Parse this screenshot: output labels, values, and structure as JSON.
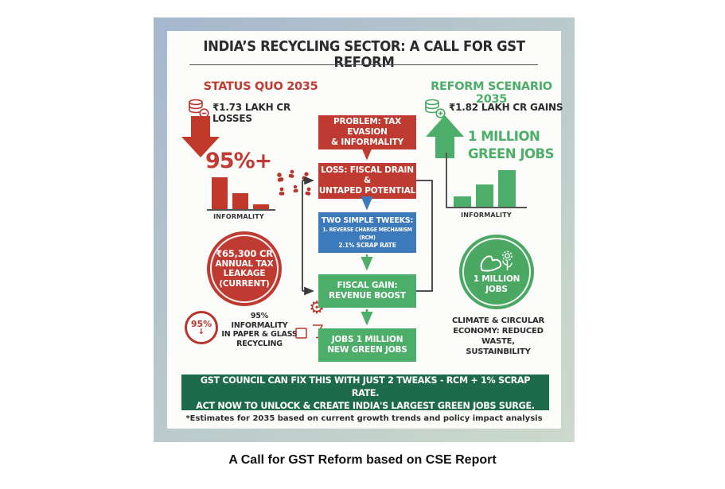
{
  "page": {
    "caption": "A Call for GST Reform based on CSE Report"
  },
  "infographic": {
    "title": "INDIA’S RECYCLING SECTOR: A CALL FOR GST REFORM",
    "status_quo": {
      "heading": "STATUS QUO 2035",
      "amount": "₹1.73 LAKH CR LOSSES",
      "informality_stat": "95%+",
      "chart_label": "INFORMALITY",
      "chart_bars_rel": [
        40,
        20,
        6
      ],
      "leakage_circle": {
        "line1": "₹65,300 CR",
        "line2": "ANNUAL TAX",
        "line3": "LEAKAGE",
        "line4": "(CURRENT)"
      },
      "badge_value": "95%",
      "badge_arrow": "↓",
      "badge_text": {
        "line1": "95% INFORMALITY",
        "line2": "IN PAPER & GLASS",
        "line3": "RECYCLING"
      }
    },
    "reform_scenario": {
      "heading": "REFORM SCENARIO 2035",
      "amount": "₹1.82 LAKH CR GAINS",
      "jobs_headline": {
        "line1": "1 MILLION",
        "line2": "GREEN JOBS"
      },
      "chart_label": "INFORMALITY",
      "chart_bars_rel": [
        13,
        28,
        46
      ],
      "jobs_circle": {
        "line1": "1 MILLION",
        "line2": "JOBS"
      },
      "climate_text": {
        "line1": "CLIMATE & CIRCULAR",
        "line2": "ECONOMY: REDUCED WASTE,",
        "line3": "SUSTAINBILITY"
      }
    },
    "flowchart": {
      "problem": {
        "line1": "PROBLEM: TAX EVASION",
        "line2": "& INFORMALITY"
      },
      "loss": {
        "line1": "LOSS: FISCAL DRAIN &",
        "line2": "UNTAPED POTENTIAL"
      },
      "tweaks": {
        "line1": "TWO SIMPLE TWEEKS:",
        "line2": "1. REVERSE CHARGE MECHANISM (RCM)",
        "line3": "2.1% SCRAP RATE"
      },
      "gain": {
        "line1": "FISCAL GAIN:",
        "line2": "REVENUE BOOST"
      },
      "jobs": {
        "line1": "JOBS 1 MILLION",
        "line2": "NEW GREEN JOBS"
      }
    },
    "banner": {
      "line1": "GST COUNCIL CAN FIX THIS WITH JUST 2 TWEAKS - RCM + 1% SCRAP RATE.",
      "line2": "ACT NOW TO UNLOCK & CREATE INDIA'S LARGEST GREEN JOBS SURGE."
    },
    "footnote": "*Estimates for 2035 based on current growth trends and policy impact analysis"
  },
  "icons": {
    "gear_glyph": "⚙",
    "coins_minus": "coins-stack-with-minus",
    "coins_plus": "coins-stack-with-plus",
    "down_arrow": "big-red-down-arrow",
    "up_arrow": "big-green-up-arrow",
    "workers_scatter": "informal-workers-scatter",
    "muscle_flower": "strength-and-growth",
    "recycling_materials": "gear-paper-glass"
  },
  "colors": {
    "red": "#bf3a30",
    "blue": "#3d7abc",
    "green": "#4cae68",
    "banner_green": "#1e6b4b",
    "text_dark": "#2b2b2b",
    "frame_blue": "#a4b7ce",
    "frame_green": "#ccdacc"
  }
}
